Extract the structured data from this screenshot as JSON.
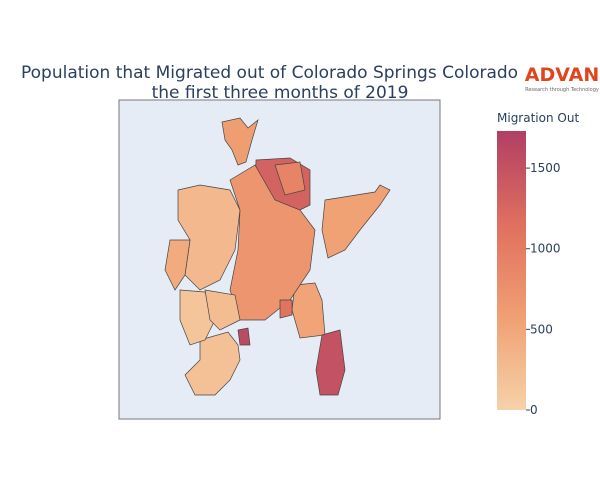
{
  "chart_data": {
    "type": "choropleth",
    "title": [
      "Population that Migrated out of Colorado Springs Colorado in",
      "the first three months of 2019"
    ],
    "logo": {
      "name": "ADVAN",
      "tagline": "Research through Technology"
    },
    "colorbar_title": "Migration Out",
    "values": [
      600,
      1300,
      550,
      520,
      1500,
      300,
      700,
      200,
      1600,
      150,
      450,
      900,
      250,
      1100
    ],
    "zlim": [
      0,
      1730
    ],
    "zticks": [
      0,
      500,
      1000,
      1500
    ],
    "colorscale": [
      [
        0,
        "#f6d2a9"
      ],
      [
        0.33,
        "#f0a073"
      ],
      [
        0.66,
        "#e0705f"
      ],
      [
        1,
        "#b13f64"
      ]
    ]
  }
}
